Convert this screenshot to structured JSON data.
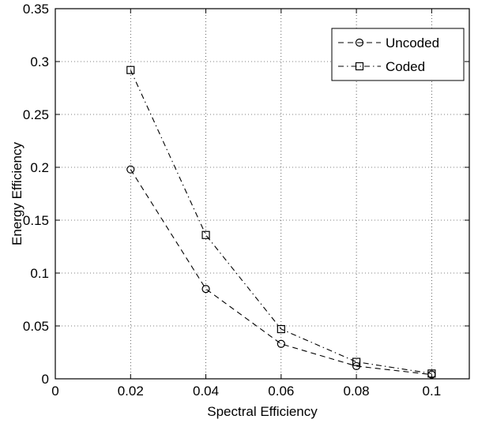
{
  "chart_data": {
    "type": "line",
    "title": "",
    "xlabel": "Spectral Efficiency",
    "ylabel": "Energy Efficiency",
    "xlim": [
      0,
      0.11
    ],
    "ylim": [
      0,
      0.35
    ],
    "xticks": [
      0,
      0.02,
      0.04,
      0.06,
      0.08,
      0.1
    ],
    "xtick_labels": [
      "0",
      "0.02",
      "0.04",
      "0.06",
      "0.08",
      "0.1"
    ],
    "yticks": [
      0,
      0.05,
      0.1,
      0.15,
      0.2,
      0.25,
      0.3,
      0.35
    ],
    "ytick_labels": [
      "0",
      "0.05",
      "0.1",
      "0.15",
      "0.2",
      "0.25",
      "0.3",
      "0.35"
    ],
    "grid": true,
    "legend_position": "top-right",
    "x": [
      0.02,
      0.04,
      0.06,
      0.08,
      0.1
    ],
    "series": [
      {
        "name": "Uncoded",
        "marker": "circle",
        "line_style": "dashed",
        "color": "#000000",
        "values": [
          0.198,
          0.085,
          0.033,
          0.012,
          0.004
        ]
      },
      {
        "name": "Coded",
        "marker": "square",
        "line_style": "dash-dot",
        "color": "#000000",
        "values": [
          0.292,
          0.136,
          0.047,
          0.016,
          0.005
        ]
      }
    ]
  }
}
